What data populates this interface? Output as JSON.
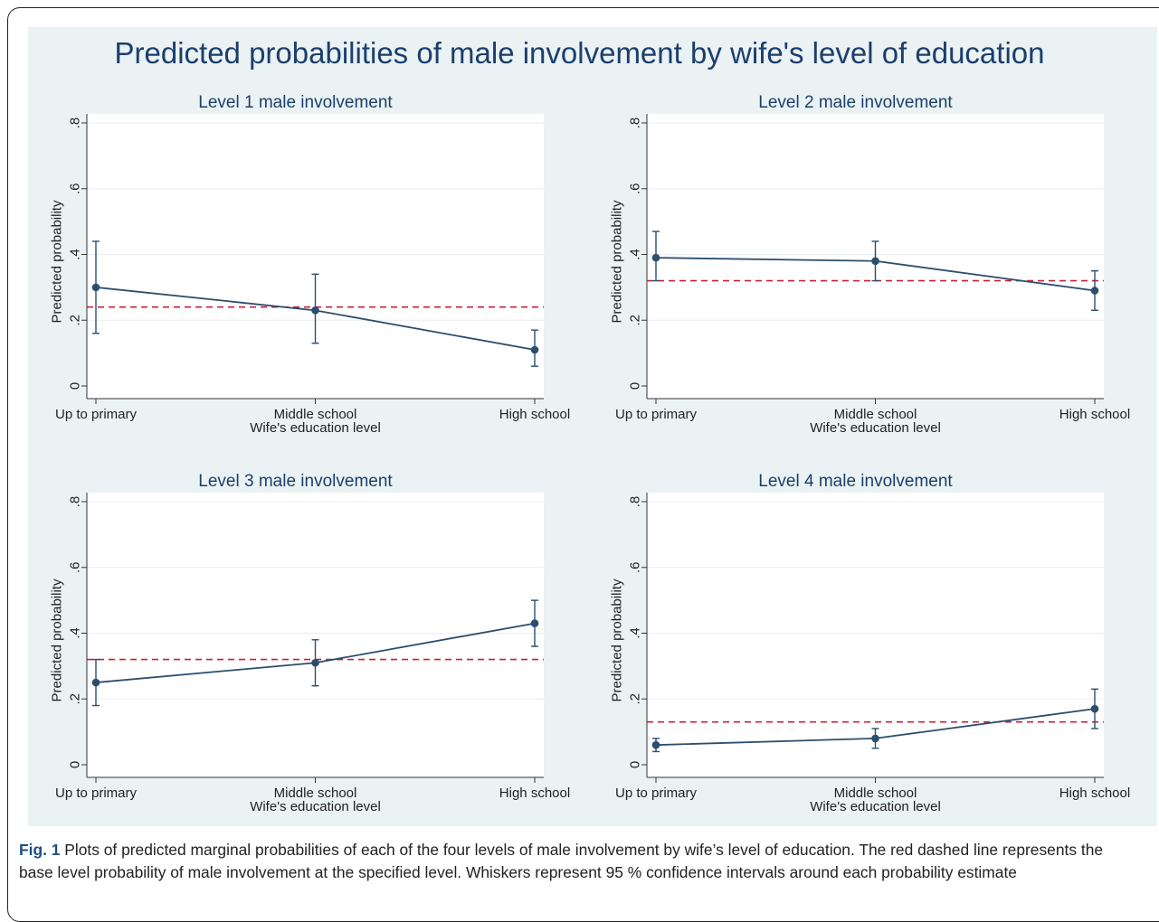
{
  "figure_title": "Predicted probabilities of male involvement by wife's level of education",
  "caption": {
    "label": "Fig. 1",
    "text": " Plots of predicted marginal probabilities of each of the four levels of male involvement by wife’s level of education. The red dashed line represents the base level probability of male involvement at the specified level. Whiskers represent 95 % confidence intervals around each probability estimate"
  },
  "colors": {
    "series": "#2b4e6e",
    "reference_line": "#c8203a",
    "panel_background": "#eaf2f3",
    "plot_background": "#ffffff",
    "title": "#1b3f6e"
  },
  "chart_data": [
    {
      "type": "line",
      "title": "Level 1 male involvement",
      "xlabel": "Wife's education level",
      "ylabel": "Predicted probability",
      "categories": [
        "Up to primary",
        "Middle school",
        "High school"
      ],
      "yticks": [
        "0",
        ".2",
        ".4",
        ".6",
        ".8"
      ],
      "ylim": [
        0,
        0.8
      ],
      "grid": true,
      "series": [
        {
          "values": [
            0.3,
            0.23,
            0.11
          ],
          "ci_low": [
            0.16,
            0.13,
            0.06
          ],
          "ci_high": [
            0.44,
            0.34,
            0.17
          ]
        }
      ],
      "reference_line": 0.24
    },
    {
      "type": "line",
      "title": "Level 2 male involvement",
      "xlabel": "Wife's education level",
      "ylabel": "Predicted probability",
      "categories": [
        "Up to primary",
        "Middle school",
        "High school"
      ],
      "yticks": [
        "0",
        ".2",
        ".4",
        ".6",
        ".8"
      ],
      "ylim": [
        0,
        0.8
      ],
      "grid": true,
      "series": [
        {
          "values": [
            0.39,
            0.38,
            0.29
          ],
          "ci_low": [
            0.32,
            0.32,
            0.23
          ],
          "ci_high": [
            0.47,
            0.44,
            0.35
          ]
        }
      ],
      "reference_line": 0.32
    },
    {
      "type": "line",
      "title": "Level 3 male involvement",
      "xlabel": "Wife's education level",
      "ylabel": "Predicted probability",
      "categories": [
        "Up to primary",
        "Middle school",
        "High school"
      ],
      "yticks": [
        "0",
        ".2",
        ".4",
        ".6",
        ".8"
      ],
      "ylim": [
        0,
        0.8
      ],
      "grid": true,
      "series": [
        {
          "values": [
            0.25,
            0.31,
            0.43
          ],
          "ci_low": [
            0.18,
            0.24,
            0.36
          ],
          "ci_high": [
            0.32,
            0.38,
            0.5
          ]
        }
      ],
      "reference_line": 0.32
    },
    {
      "type": "line",
      "title": "Level 4 male involvement",
      "xlabel": "Wife's education level",
      "ylabel": "Predicted probability",
      "categories": [
        "Up to primary",
        "Middle school",
        "High school"
      ],
      "yticks": [
        "0",
        ".2",
        ".4",
        ".6",
        ".8"
      ],
      "ylim": [
        0,
        0.8
      ],
      "grid": true,
      "series": [
        {
          "values": [
            0.06,
            0.08,
            0.17
          ],
          "ci_low": [
            0.04,
            0.05,
            0.11
          ],
          "ci_high": [
            0.08,
            0.11,
            0.23
          ]
        }
      ],
      "reference_line": 0.13
    }
  ]
}
